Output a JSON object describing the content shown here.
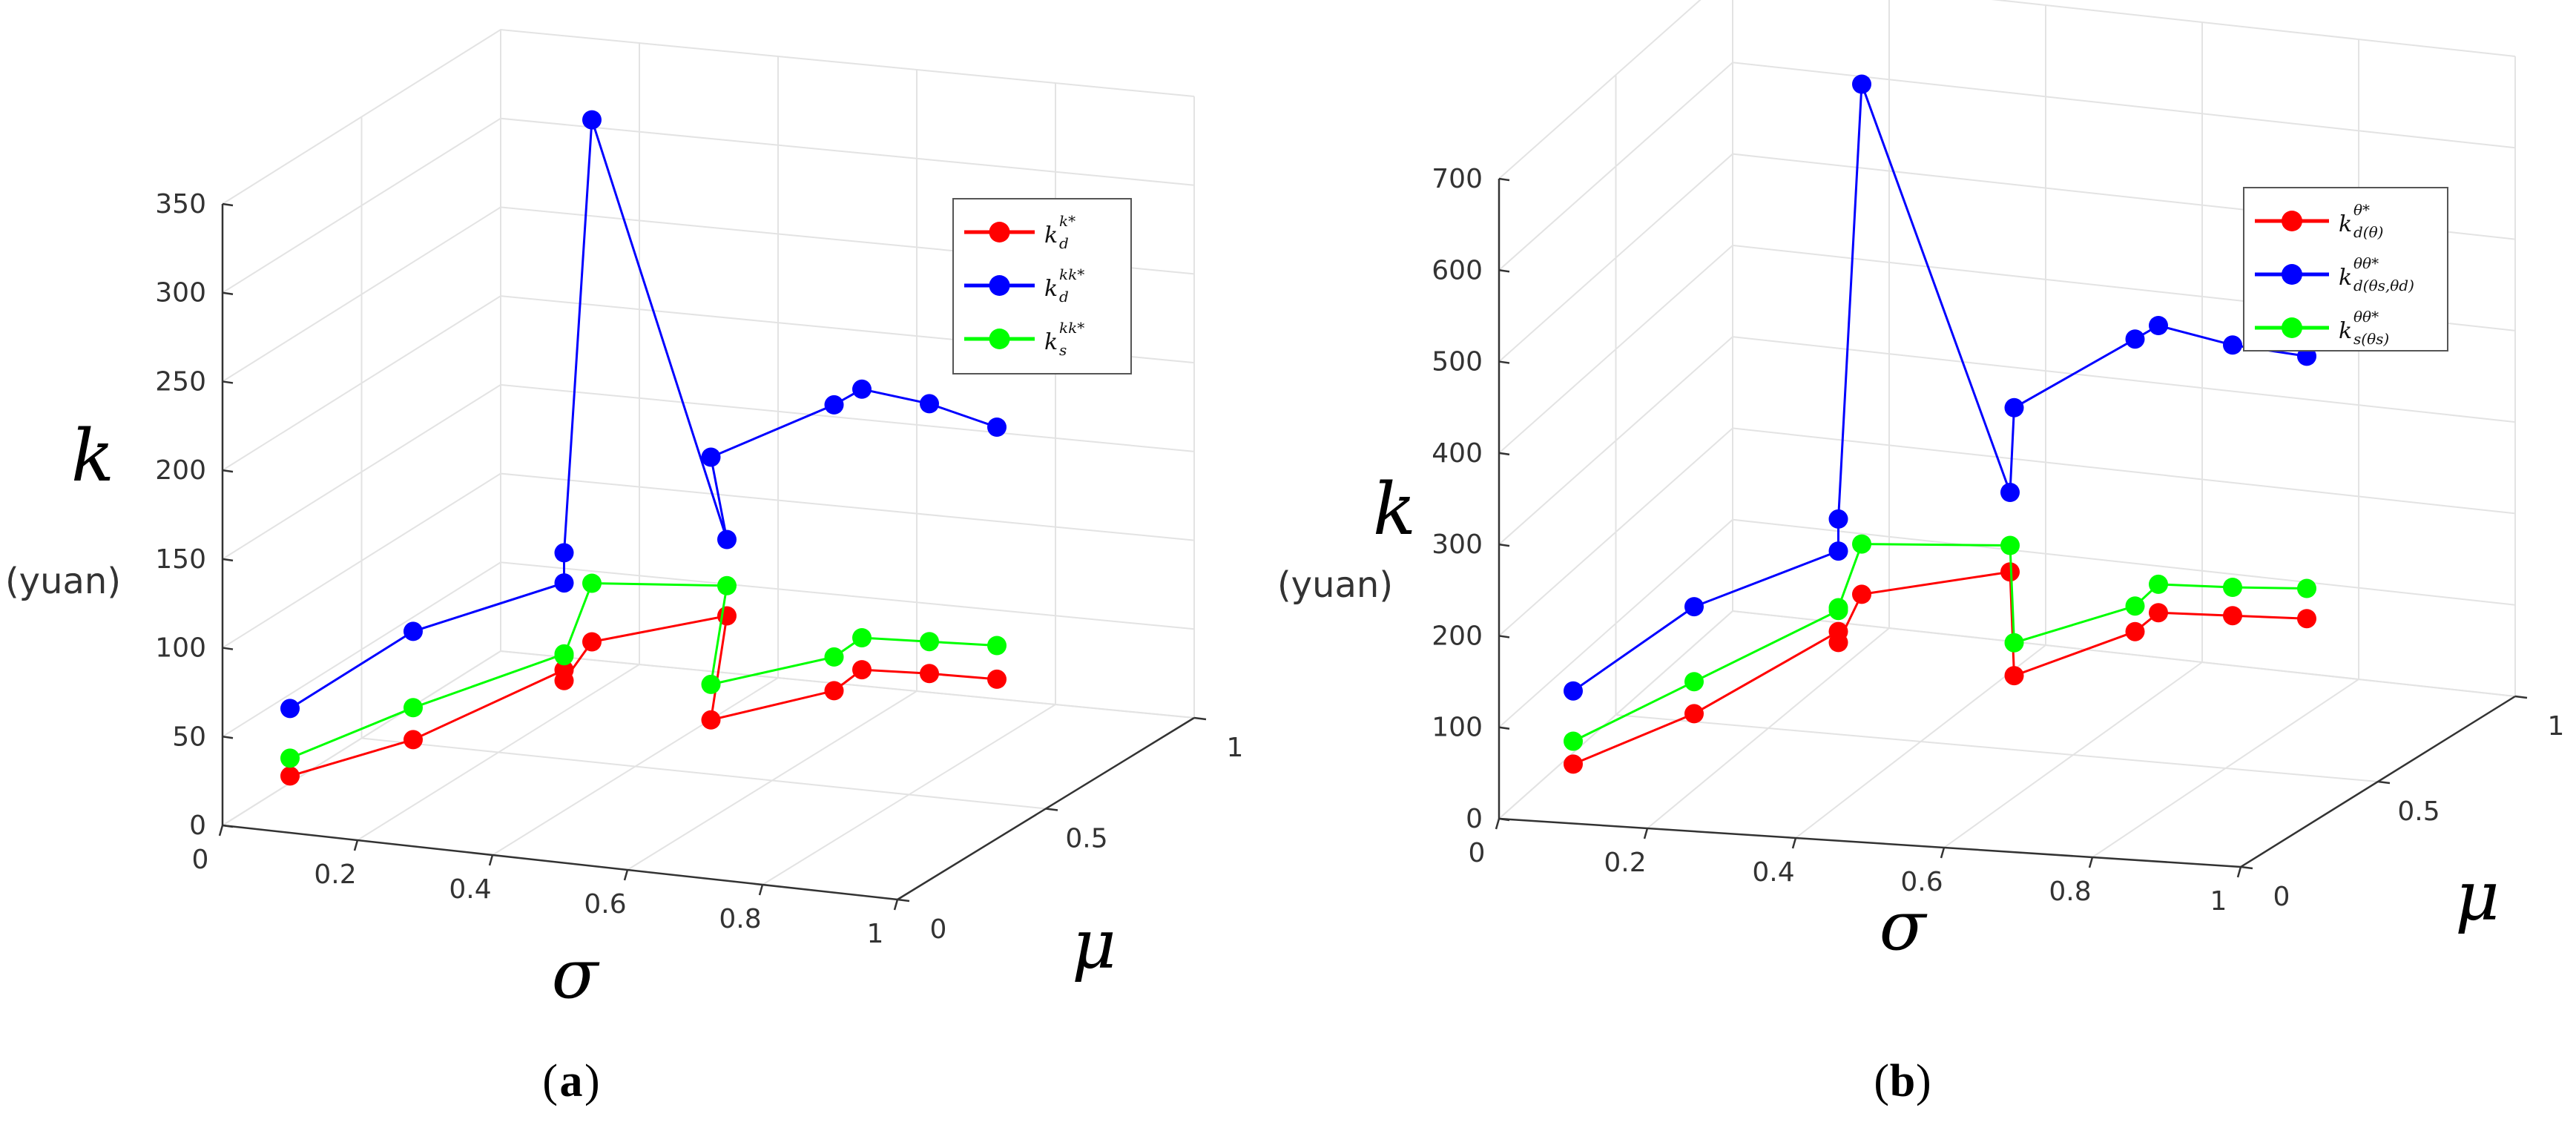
{
  "chart_data": [
    {
      "panel": "a",
      "type": "line3d",
      "title": "",
      "zlabel": "k",
      "zunit": "(yuan)",
      "xlabel": "σ",
      "ylabel": "μ",
      "zticks": [
        "0",
        "50",
        "100",
        "150",
        "200",
        "250",
        "300",
        "350"
      ],
      "xticks": [
        "0",
        "0.2",
        "0.4",
        "0.6",
        "0.8",
        "1"
      ],
      "yticks": [
        "0",
        "0.5",
        "1"
      ],
      "zlim": [
        0,
        350
      ],
      "sigma": [
        0.1,
        0.2,
        0.3,
        0.3,
        0.3,
        0.5,
        0.6,
        0.7,
        0.7,
        0.8,
        0.9
      ],
      "mu": [
        0.0,
        0.2,
        0.5,
        0.5,
        0.6,
        0.6,
        0.3,
        0.5,
        0.6,
        0.6,
        0.6
      ],
      "series": [
        {
          "name": "k_d^{k*}",
          "color": "#ff0000",
          "values": [
            32,
            37,
            51,
            45,
            57,
            80,
            55,
            56,
            58,
            60,
            61
          ]
        },
        {
          "name": "k_d^{kk*}",
          "color": "#0000ff",
          "values": [
            70,
            98,
            100,
            117,
            351,
            123,
            203,
            217,
            216,
            212,
            203
          ]
        },
        {
          "name": "k_s^{kk*}",
          "color": "#00ff00",
          "values": [
            42,
            55,
            60,
            59,
            90,
            97,
            75,
            75,
            76,
            78,
            80
          ]
        }
      ],
      "legend": [
        {
          "base": "k",
          "sub": "d",
          "sup": "k*",
          "color": "#ff0000"
        },
        {
          "base": "k",
          "sub": "d",
          "sup": "kk*",
          "color": "#0000ff"
        },
        {
          "base": "k",
          "sub": "s",
          "sup": "kk*",
          "color": "#00ff00"
        }
      ],
      "legend_position": "top-right",
      "caption": "(a)"
    },
    {
      "panel": "b",
      "type": "line3d",
      "title": "",
      "zlabel": "k",
      "zunit": "(yuan)",
      "xlabel": "σ",
      "ylabel": "μ",
      "zticks": [
        "0",
        "100",
        "200",
        "300",
        "400",
        "500",
        "600",
        "700"
      ],
      "xticks": [
        "0",
        "0.2",
        "0.4",
        "0.6",
        "0.8",
        "1"
      ],
      "yticks": [
        "0",
        "0.5",
        "1"
      ],
      "zlim": [
        0,
        700
      ],
      "sigma": [
        0.1,
        0.2,
        0.3,
        0.3,
        0.3,
        0.5,
        0.6,
        0.7,
        0.7,
        0.8,
        0.9
      ],
      "mu": [
        0.0,
        0.2,
        0.5,
        0.5,
        0.6,
        0.6,
        0.3,
        0.5,
        0.6,
        0.6,
        0.6
      ],
      "series": [
        {
          "name": "k_{d(θ)}^{θ*}",
          "color": "#ff0000",
          "values": [
            65,
            80,
            107,
            95,
            125,
            160,
            120,
            128,
            126,
            128,
            130
          ]
        },
        {
          "name": "k_{d(θs,θd)}^{θθ*}",
          "color": "#0000ff",
          "values": [
            145,
            197,
            195,
            230,
            683,
            247,
            413,
            448,
            440,
            424,
            417
          ]
        },
        {
          "name": "k_{s(θs)}^{θθ*}",
          "color": "#00ff00",
          "values": [
            90,
            115,
            130,
            133,
            180,
            189,
            156,
            156,
            157,
            159,
            163
          ]
        }
      ],
      "legend": [
        {
          "base": "k",
          "sub": "d(θ)",
          "sup": "θ*",
          "color": "#ff0000"
        },
        {
          "base": "k",
          "sub": "d(θs,θd)",
          "sup": "θθ*",
          "color": "#0000ff"
        },
        {
          "base": "k",
          "sub": "s(θs)",
          "sup": "θθ*",
          "color": "#00ff00"
        }
      ],
      "legend_position": "top-right",
      "caption": "(b)"
    }
  ]
}
